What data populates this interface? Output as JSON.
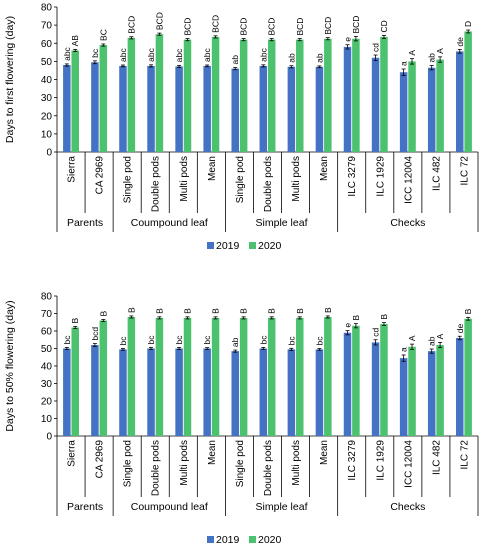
{
  "chart_data": [
    {
      "type": "bar",
      "ylabel": "Days to first flowering (day)",
      "ylim": [
        0,
        80
      ],
      "yticks": [
        0,
        10,
        20,
        30,
        40,
        50,
        60,
        70,
        80
      ],
      "grid": false,
      "categories": [
        "Sierra",
        "CA 2969",
        "Single pod",
        "Double pods",
        "Multi pods",
        "Mean",
        "Single pod",
        "Double pods",
        "Multi pods",
        "Mean",
        "ILC 3279",
        "ILC 1929",
        "ICC 12004",
        "ILC 482",
        "ILC 72"
      ],
      "groups": [
        {
          "label": "Parents",
          "count": 2
        },
        {
          "label": "Coumpound leaf",
          "count": 4
        },
        {
          "label": "Simple leaf",
          "count": 4
        },
        {
          "label": "Checks",
          "count": 5
        }
      ],
      "series": [
        {
          "name": "2019",
          "color": "#4472c4",
          "values": [
            48,
            49.5,
            47.5,
            47.5,
            47.2,
            47.5,
            46,
            47.5,
            47,
            47,
            58,
            52,
            44,
            46.5,
            55.5
          ],
          "errors": [
            0.6,
            0.8,
            0.5,
            0.6,
            0.6,
            0.5,
            0.6,
            0.6,
            0.6,
            0.5,
            1.2,
            1.5,
            1.8,
            1.2,
            1
          ],
          "letters": [
            "abc",
            "bc",
            "abc",
            "abc",
            "abc",
            "abc",
            "ab",
            "abc",
            "ab",
            "ab",
            "e",
            "cd",
            "a",
            "ab",
            "de"
          ]
        },
        {
          "name": "2020",
          "color": "#4cc16e",
          "values": [
            56,
            59,
            63,
            65,
            62,
            63.5,
            62,
            62,
            62,
            62.5,
            62.5,
            63.5,
            50,
            51,
            66.5
          ],
          "errors": [
            0.6,
            0.6,
            0.6,
            0.6,
            0.6,
            0.6,
            0.6,
            0.6,
            0.6,
            0.6,
            1.2,
            0.8,
            1.5,
            1.5,
            0.8
          ],
          "letters": [
            "AB",
            "BC",
            "BCD",
            "BCD",
            "BCD",
            "BCD",
            "BCD",
            "BCD",
            "BCD",
            "BCD",
            "BCD",
            "CD",
            "A",
            "A",
            "D"
          ]
        }
      ]
    },
    {
      "type": "bar",
      "ylabel": "Days to 50% flowering (day)",
      "ylim": [
        0,
        80
      ],
      "yticks": [
        0,
        10,
        20,
        30,
        40,
        50,
        60,
        70,
        80
      ],
      "grid": false,
      "categories": [
        "Sierra",
        "CA 2969",
        "Single pod",
        "Double pods",
        "Multi pods",
        "Mean",
        "Single pod",
        "Double pods",
        "Multi pods",
        "Mean",
        "ILC 3279",
        "ILC 1929",
        "ICC 12004",
        "ILC 482",
        "ILC 72"
      ],
      "groups": [
        {
          "label": "Parents",
          "count": 2
        },
        {
          "label": "Coumpound leaf",
          "count": 4
        },
        {
          "label": "Simple leaf",
          "count": 4
        },
        {
          "label": "Checks",
          "count": 5
        }
      ],
      "series": [
        {
          "name": "2019",
          "color": "#4472c4",
          "values": [
            50,
            52,
            49.5,
            50,
            50,
            50,
            48.5,
            50,
            49.5,
            49.5,
            59,
            53.5,
            44.5,
            48.5,
            56
          ],
          "errors": [
            0.6,
            0.8,
            0.5,
            0.6,
            0.6,
            0.5,
            0.6,
            0.6,
            0.6,
            0.5,
            1.2,
            1.5,
            1.8,
            1.2,
            1
          ],
          "letters": [
            "bc",
            "bcd",
            "bc",
            "bc",
            "bc",
            "bc",
            "ab",
            "bc",
            "bc",
            "bc",
            "e",
            "cd",
            "a",
            "ab",
            "de"
          ]
        },
        {
          "name": "2020",
          "color": "#4cc16e",
          "values": [
            62,
            66,
            68,
            67.5,
            67.5,
            67.5,
            67.5,
            67.5,
            67.5,
            68,
            63,
            64,
            51,
            52,
            67
          ],
          "errors": [
            0.6,
            0.6,
            0.6,
            0.6,
            0.6,
            0.6,
            0.6,
            0.6,
            0.6,
            0.6,
            1.2,
            0.8,
            1.5,
            1.5,
            0.8
          ],
          "letters": [
            "B",
            "B",
            "B",
            "B",
            "B",
            "B",
            "B",
            "B",
            "B",
            "B",
            "B",
            "B",
            "A",
            "A",
            "B"
          ]
        }
      ]
    }
  ]
}
